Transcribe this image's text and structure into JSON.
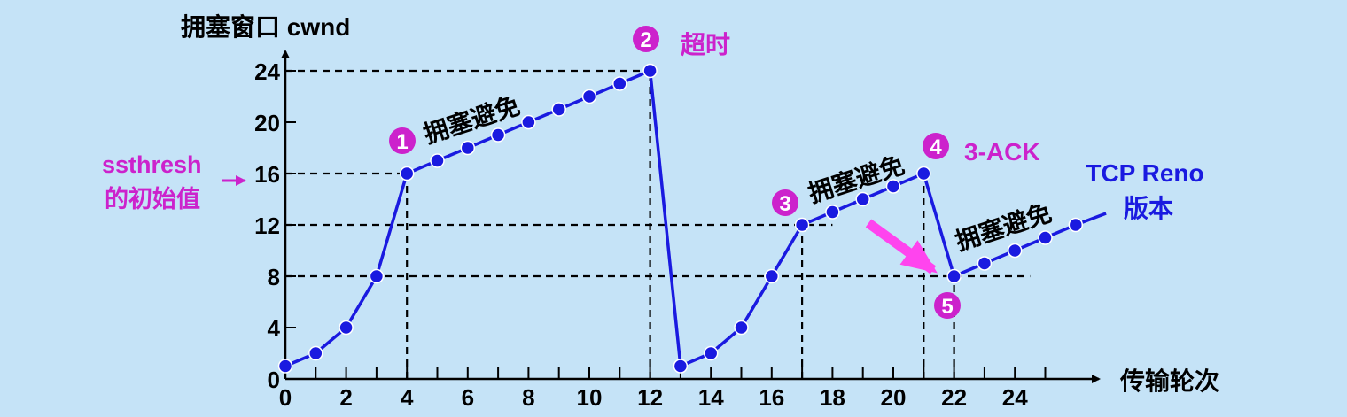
{
  "chart_data": {
    "type": "line",
    "ylabel": "拥塞窗口  cwnd",
    "xlabel": "传输轮次",
    "y_ticks": [
      "0",
      "4",
      "8",
      "12",
      "16",
      "20",
      "24"
    ],
    "x_ticks": [
      "0",
      "2",
      "4",
      "6",
      "8",
      "10",
      "12",
      "14",
      "16",
      "18",
      "20",
      "22",
      "24"
    ],
    "xlim": [
      0,
      26
    ],
    "ylim": [
      0,
      26
    ],
    "ssthresh_label_line1": "ssthresh",
    "ssthresh_label_line2": "的初始值",
    "ssthresh_value": 16,
    "series": [
      {
        "name": "TCP Reno 版本",
        "x": [
          0,
          1,
          2,
          3,
          4,
          5,
          6,
          7,
          8,
          9,
          10,
          11,
          12,
          13,
          14,
          15,
          16,
          17,
          18,
          19,
          20,
          21,
          22,
          23,
          24,
          25,
          26
        ],
        "y": [
          1,
          2,
          4,
          8,
          16,
          17,
          18,
          19,
          20,
          21,
          22,
          23,
          24,
          1,
          2,
          4,
          8,
          12,
          13,
          14,
          15,
          16,
          8,
          9,
          10,
          11,
          12
        ]
      }
    ],
    "series_label_line1": "TCP Reno",
    "series_label_line2": "版本",
    "annotations": [
      {
        "marker": "1",
        "text": "拥塞避免"
      },
      {
        "marker": "2",
        "text": "超时"
      },
      {
        "marker": "3",
        "text": "拥塞避免"
      },
      {
        "marker": "4",
        "text": "3-ACK"
      },
      {
        "marker": "5",
        "text": ""
      },
      {
        "marker": "",
        "text": "拥塞避免"
      }
    ],
    "grid": false,
    "colors": {
      "background": "#c5e3f7",
      "line": "#1a1ae0",
      "point": "#1a1ae0",
      "accent": "#cc22cc",
      "axis": "#000000",
      "series_label": "#1a1ae0"
    }
  }
}
